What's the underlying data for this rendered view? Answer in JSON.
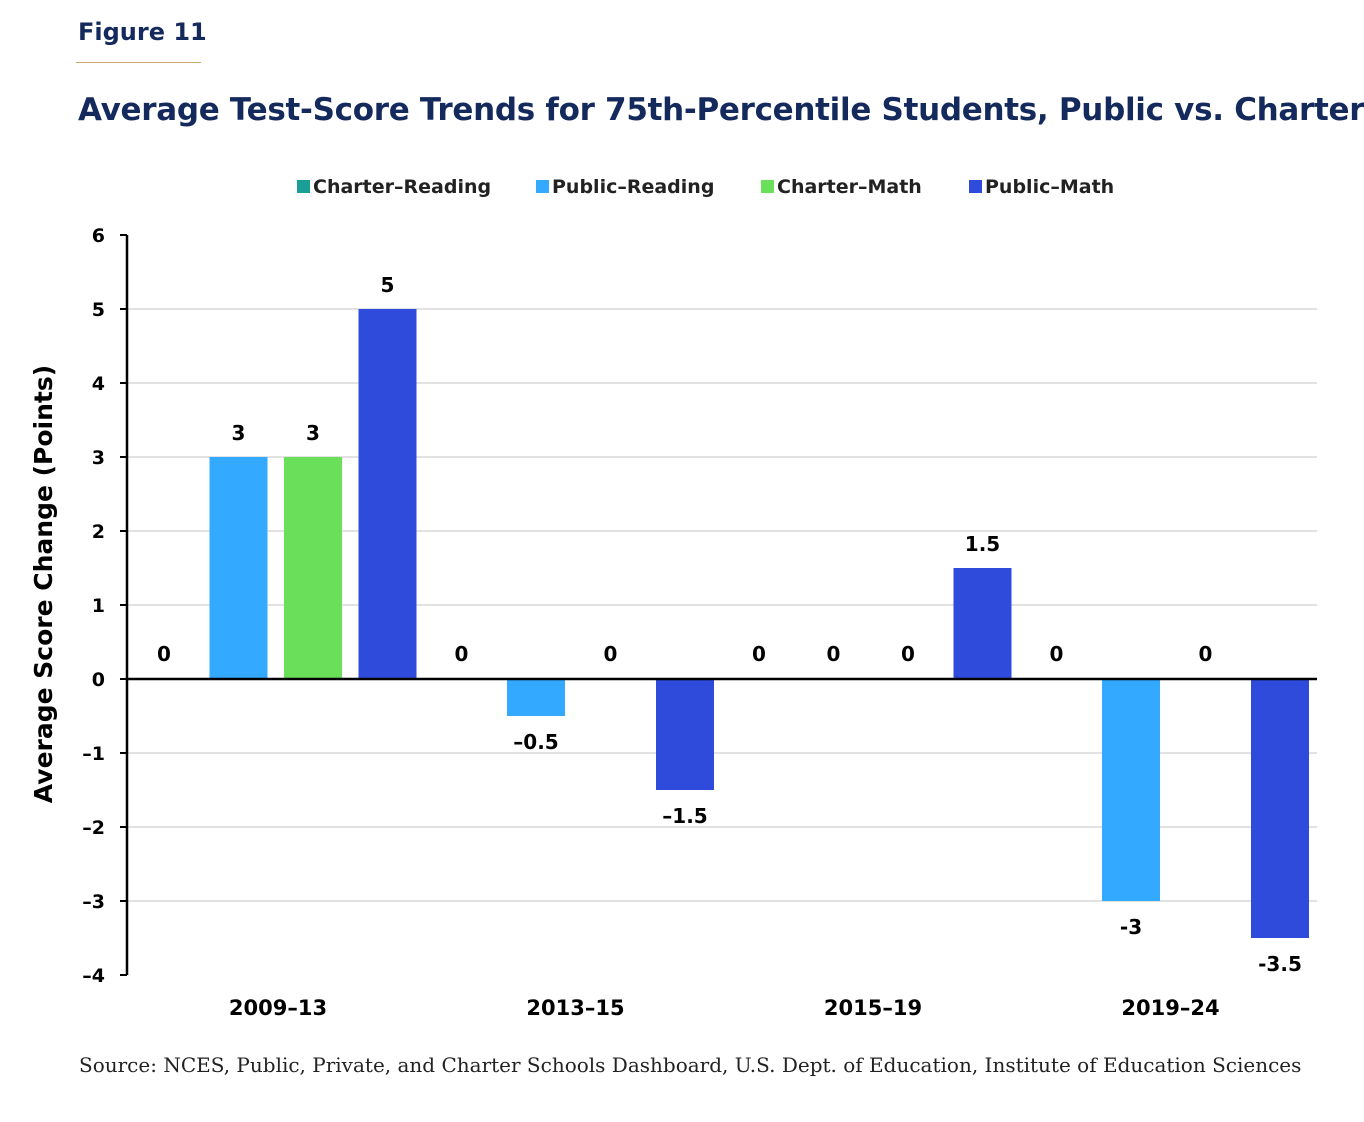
{
  "figure_label": "Figure 11",
  "title": "Average Test-Score Trends for 75th-Percentile Students, Public vs. Charter",
  "source": "Source: NCES, Public, Private, and Charter Schools Dashboard, U.S. Dept. of Education, Institute of Education Sciences",
  "colors": {
    "title": "#152a5c",
    "rule": "#c8a96a",
    "grid": "#d9d9d9",
    "axis": "#000000"
  },
  "chart_data": {
    "type": "bar",
    "categories": [
      "2009–13",
      "2013–15",
      "2015–19",
      "2019–24"
    ],
    "series": [
      {
        "name": "Charter–Reading",
        "color": "#1a9e96",
        "values": [
          0,
          0,
          0,
          0
        ],
        "labels": [
          "0",
          "0",
          "0",
          "0"
        ]
      },
      {
        "name": "Public–Reading",
        "color": "#33aaff",
        "values": [
          3,
          -0.5,
          0,
          -3
        ],
        "labels": [
          "3",
          "–0.5",
          "0",
          "-3"
        ]
      },
      {
        "name": "Charter–Math",
        "color": "#6ae05a",
        "values": [
          3,
          0,
          0,
          0
        ],
        "labels": [
          "3",
          "0",
          "0",
          "0"
        ]
      },
      {
        "name": "Public–Math",
        "color": "#2e4bdb",
        "values": [
          5,
          -1.5,
          1.5,
          -3.5
        ],
        "labels": [
          "5",
          "–1.5",
          "1.5",
          "-3.5"
        ]
      }
    ],
    "ylabel": "Average Score Change (Points)",
    "xlabel": "",
    "ylim": [
      -4,
      6
    ],
    "yticks": [
      6,
      5,
      4,
      3,
      2,
      1,
      0,
      -1,
      -2,
      -3,
      -4
    ],
    "ytick_labels": [
      "6",
      "5",
      "4",
      "3",
      "2",
      "1",
      "0",
      "–1",
      "–2",
      "–3",
      "–4"
    ],
    "grid": true,
    "legend_position": "top"
  }
}
